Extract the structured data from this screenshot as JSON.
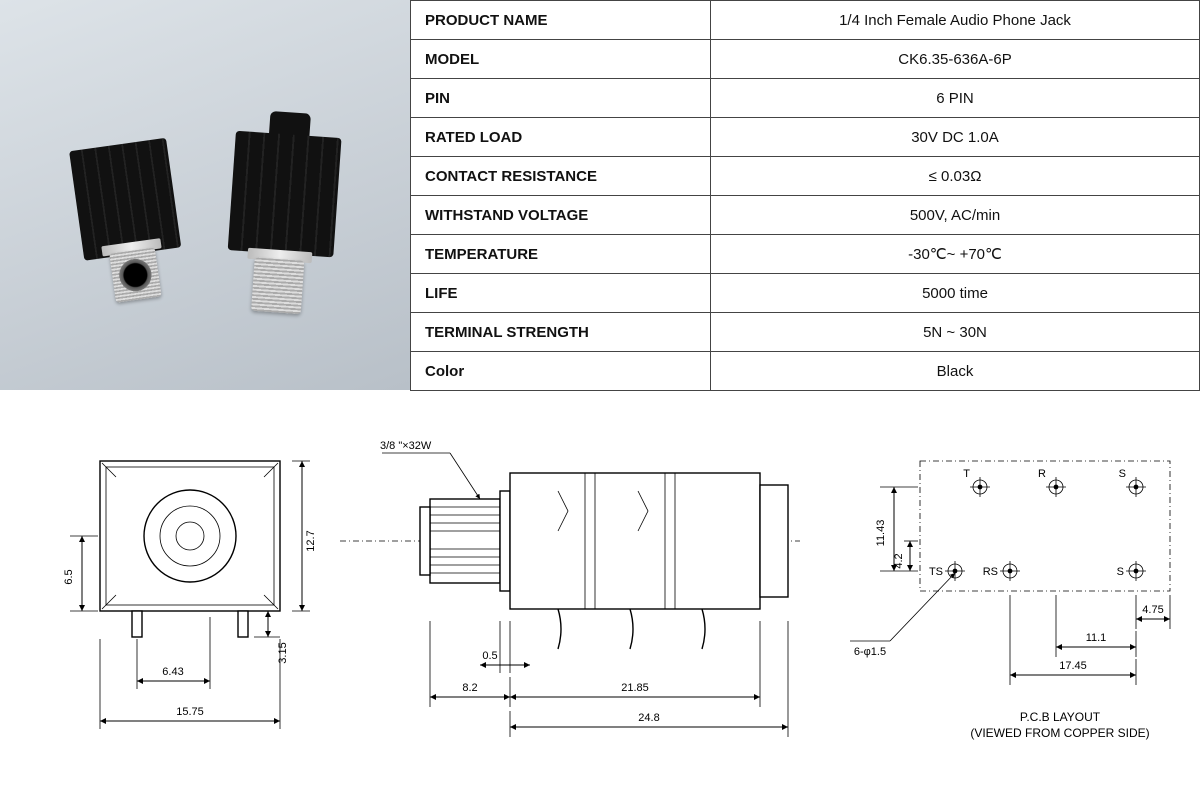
{
  "specs": {
    "rows": [
      {
        "key": "PRODUCT NAME",
        "val": "1/4 Inch Female Audio Phone Jack"
      },
      {
        "key": "MODEL",
        "val": "CK6.35-636A-6P"
      },
      {
        "key": "PIN",
        "val": "6 PIN"
      },
      {
        "key": "RATED LOAD",
        "val": "30V DC 1.0A"
      },
      {
        "key": "CONTACT RESISTANCE",
        "val": "≤ 0.03Ω"
      },
      {
        "key": "WITHSTAND VOLTAGE",
        "val": "500V, AC/min"
      },
      {
        "key": "TEMPERATURE",
        "val": "-30℃~ +70℃"
      },
      {
        "key": "LIFE",
        "val": "5000 time"
      },
      {
        "key": "TERMINAL STRENGTH",
        "val": "5N ~ 30N"
      },
      {
        "key": "Color",
        "val": "Black"
      }
    ]
  },
  "drawings": {
    "front": {
      "dims": {
        "w": "15.75",
        "w_inner": "6.43",
        "h": "12.7",
        "h_off": "6.5",
        "pin_drop": "3.15"
      }
    },
    "side": {
      "thread_label": "3/8 \"×32W",
      "dims": {
        "nut_w": "0.5",
        "thread_len": "8.2",
        "body_len": "21.85",
        "total_len": "24.8"
      }
    },
    "pcb": {
      "caption_top": "P.C.B LAYOUT",
      "caption_bot": "(VIEWED FROM COPPER SIDE)",
      "pads_top": [
        {
          "label": "T"
        },
        {
          "label": "R"
        },
        {
          "label": "S"
        }
      ],
      "pads_bot": [
        {
          "label": "TS"
        },
        {
          "label": "RS"
        },
        {
          "label": "S"
        }
      ],
      "dims": {
        "row_pitch": "11.43",
        "sub_pitch": "4.2",
        "hole": "6-φ1.5",
        "edge": "4.75",
        "p1": "11.1",
        "p2": "17.45"
      }
    }
  },
  "style": {
    "border_color": "#444444",
    "text_color": "#111111",
    "bg": "#ffffff",
    "photo_bg_from": "#dde3e8",
    "photo_bg_to": "#b8c0c8",
    "font_size_table": 15,
    "font_size_dim": 11
  }
}
